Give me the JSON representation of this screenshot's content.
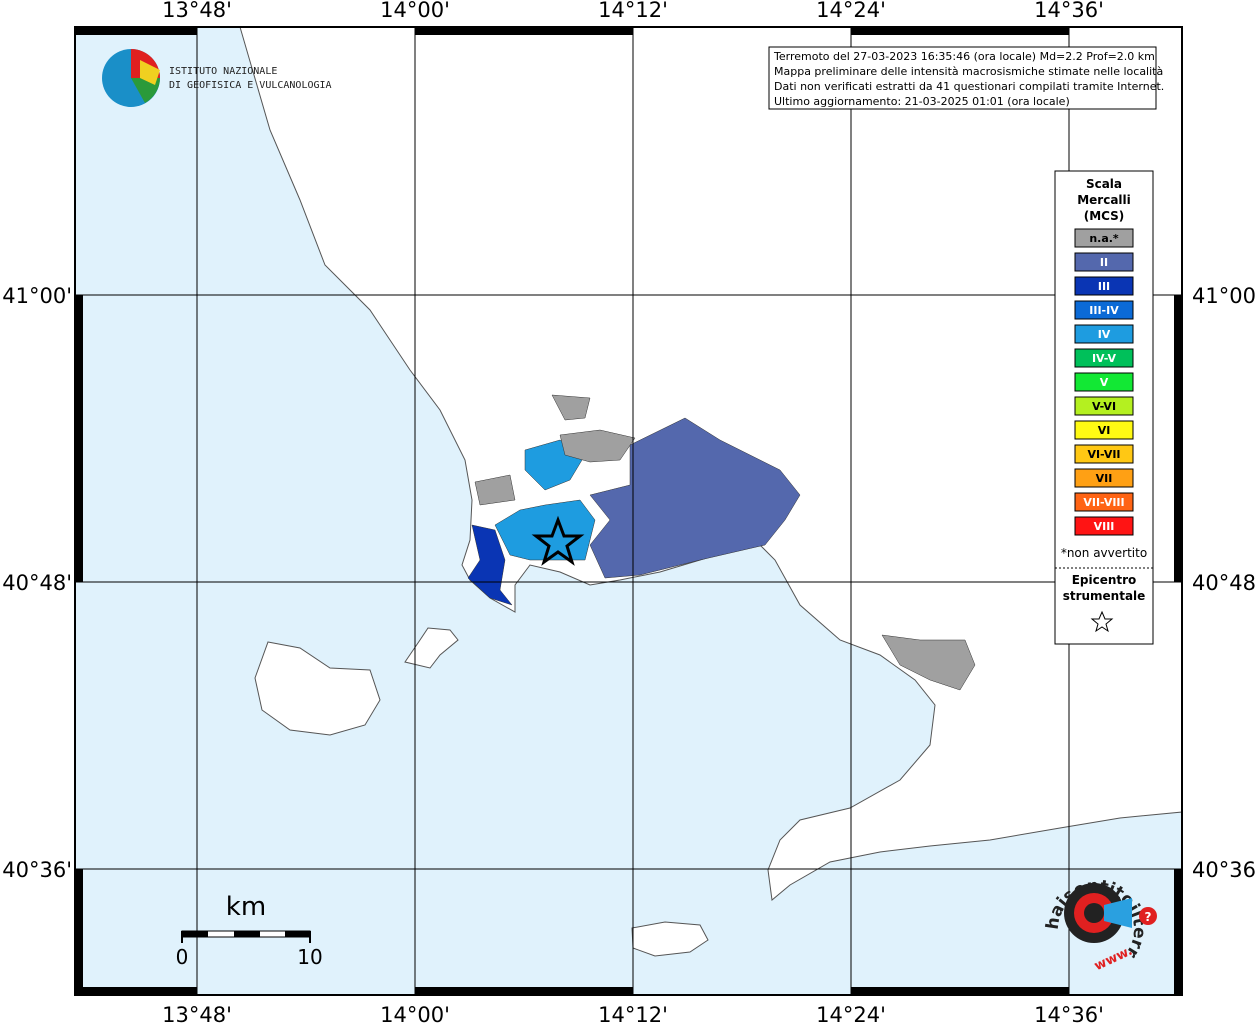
{
  "logo": {
    "line1": "ISTITUTO NAZIONALE",
    "line2": "DI GEOFISICA E VULCANOLOGIA"
  },
  "graticule": {
    "lon_labels": [
      "13°48'",
      "14°00'",
      "14°12'",
      "14°24'",
      "14°36'"
    ],
    "lat_labels": [
      "41°00'",
      "40°48'",
      "40°36'"
    ]
  },
  "info": {
    "lines": [
      "Terremoto del 27-03-2023 16:35:46 (ora locale) Md=2.2 Prof=2.0 km",
      "Mappa preliminare delle intensità macrosismiche stimate nelle località",
      "Dati non verificati estratti da 41 questionari compilati tramite Internet.",
      "Ultimo aggiornamento: 21-03-2025 01:01 (ora locale)"
    ]
  },
  "legend": {
    "title": [
      "Scala",
      "Mercalli",
      "(MCS)"
    ],
    "classes": [
      {
        "label": "n.a.*",
        "color": "#a0a0a0"
      },
      {
        "label": "II",
        "color": "#5468ad"
      },
      {
        "label": "III",
        "color": "#0a35b4"
      },
      {
        "label": "III-IV",
        "color": "#0b6ad6"
      },
      {
        "label": "IV",
        "color": "#1e9ce0"
      },
      {
        "label": "IV-V",
        "color": "#00c05a"
      },
      {
        "label": "V",
        "color": "#12e834"
      },
      {
        "label": "V-VI",
        "color": "#b4f020"
      },
      {
        "label": "VI",
        "color": "#fffa14"
      },
      {
        "label": "VI-VII",
        "color": "#ffc814"
      },
      {
        "label": "VII",
        "color": "#ffa014"
      },
      {
        "label": "VII-VIII",
        "color": "#ff6414"
      },
      {
        "label": "VIII",
        "color": "#ff1414"
      }
    ],
    "note": "*non avvertito",
    "epicenter": [
      "Epicentro",
      "strumentale"
    ]
  },
  "scale_bar": {
    "unit": "km",
    "ticks": [
      "0",
      "10"
    ]
  },
  "badge": {
    "text": "haisentitoilterremoto.it",
    "prefix": "www.",
    "mark": "?"
  }
}
